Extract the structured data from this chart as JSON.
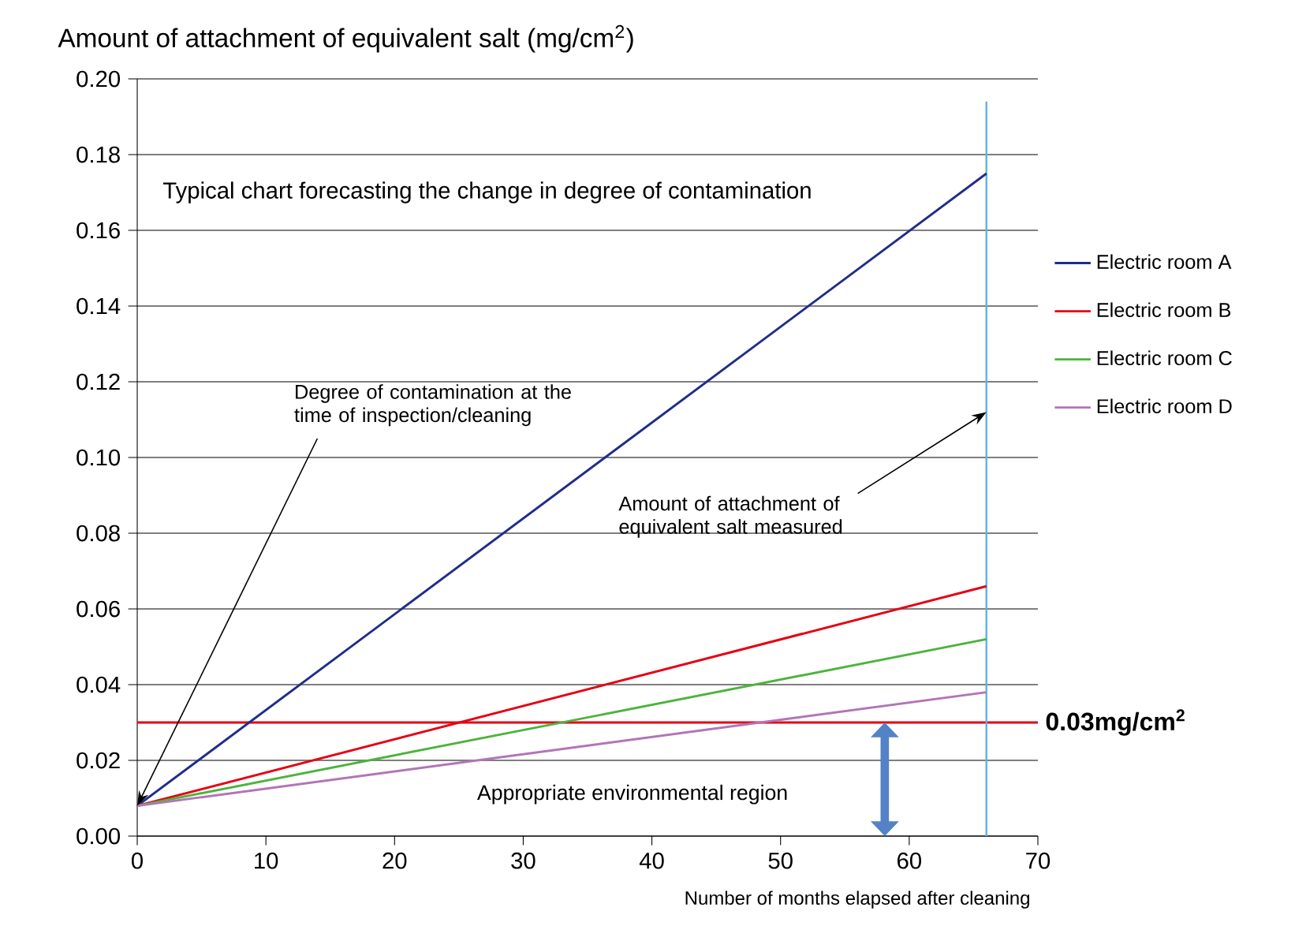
{
  "chart_data": {
    "type": "line",
    "title": "Typical chart forecasting the change in degree of contamination",
    "ylabel": "Amount of attachment of equivalent salt (mg/cm$^{2}$)",
    "xlabel": "Number of months elapsed after cleaning",
    "x": [
      0,
      66
    ],
    "series": [
      {
        "name": "Electric room A",
        "color": "#1f2d8a",
        "values": [
          0.008,
          0.175
        ]
      },
      {
        "name": "Electric room B",
        "color": "#e60012",
        "values": [
          0.008,
          0.066
        ]
      },
      {
        "name": "Electric room C",
        "color": "#4cb43c",
        "values": [
          0.008,
          0.052
        ]
      },
      {
        "name": "Electric room D",
        "color": "#b374b8",
        "values": [
          0.008,
          0.038
        ]
      }
    ],
    "xlim": [
      0,
      70
    ],
    "ylim": [
      0,
      0.2
    ],
    "xticks": [
      0,
      10,
      20,
      30,
      40,
      50,
      60,
      70
    ],
    "yticks": [
      {
        "value": 0,
        "label": "0.00"
      },
      {
        "value": 0.02,
        "label": "0.02"
      },
      {
        "value": 0.04,
        "label": "0.04"
      },
      {
        "value": 0.06,
        "label": "0.06"
      },
      {
        "value": 0.08,
        "label": "0.08"
      },
      {
        "value": 0.1,
        "label": "0.10"
      },
      {
        "value": 0.12,
        "label": "0.12"
      },
      {
        "value": 0.14,
        "label": "0.14"
      },
      {
        "value": 0.16,
        "label": "0.16"
      },
      {
        "value": 0.18,
        "label": "0.18"
      },
      {
        "value": 0.2,
        "label": "0.20"
      }
    ],
    "ref_lines": [
      {
        "axis": "y",
        "value": 0.03,
        "label": "0.03mg/cm$^{2}$",
        "color": "#e60012"
      },
      {
        "axis": "x",
        "value": 66,
        "color": "#5ab4e5"
      }
    ],
    "annotations": [
      "Appropriate environmental region",
      {
        "text": "Degree of contamination at the time of inspection/cleaning",
        "x": 0,
        "y": 0.008
      },
      {
        "text": "Amount of attachment of equivalent salt measured",
        "x": 66,
        "y": 0.112
      }
    ],
    "grid": "y",
    "legend": "right",
    "marker": "none",
    "line_style": "solid"
  }
}
